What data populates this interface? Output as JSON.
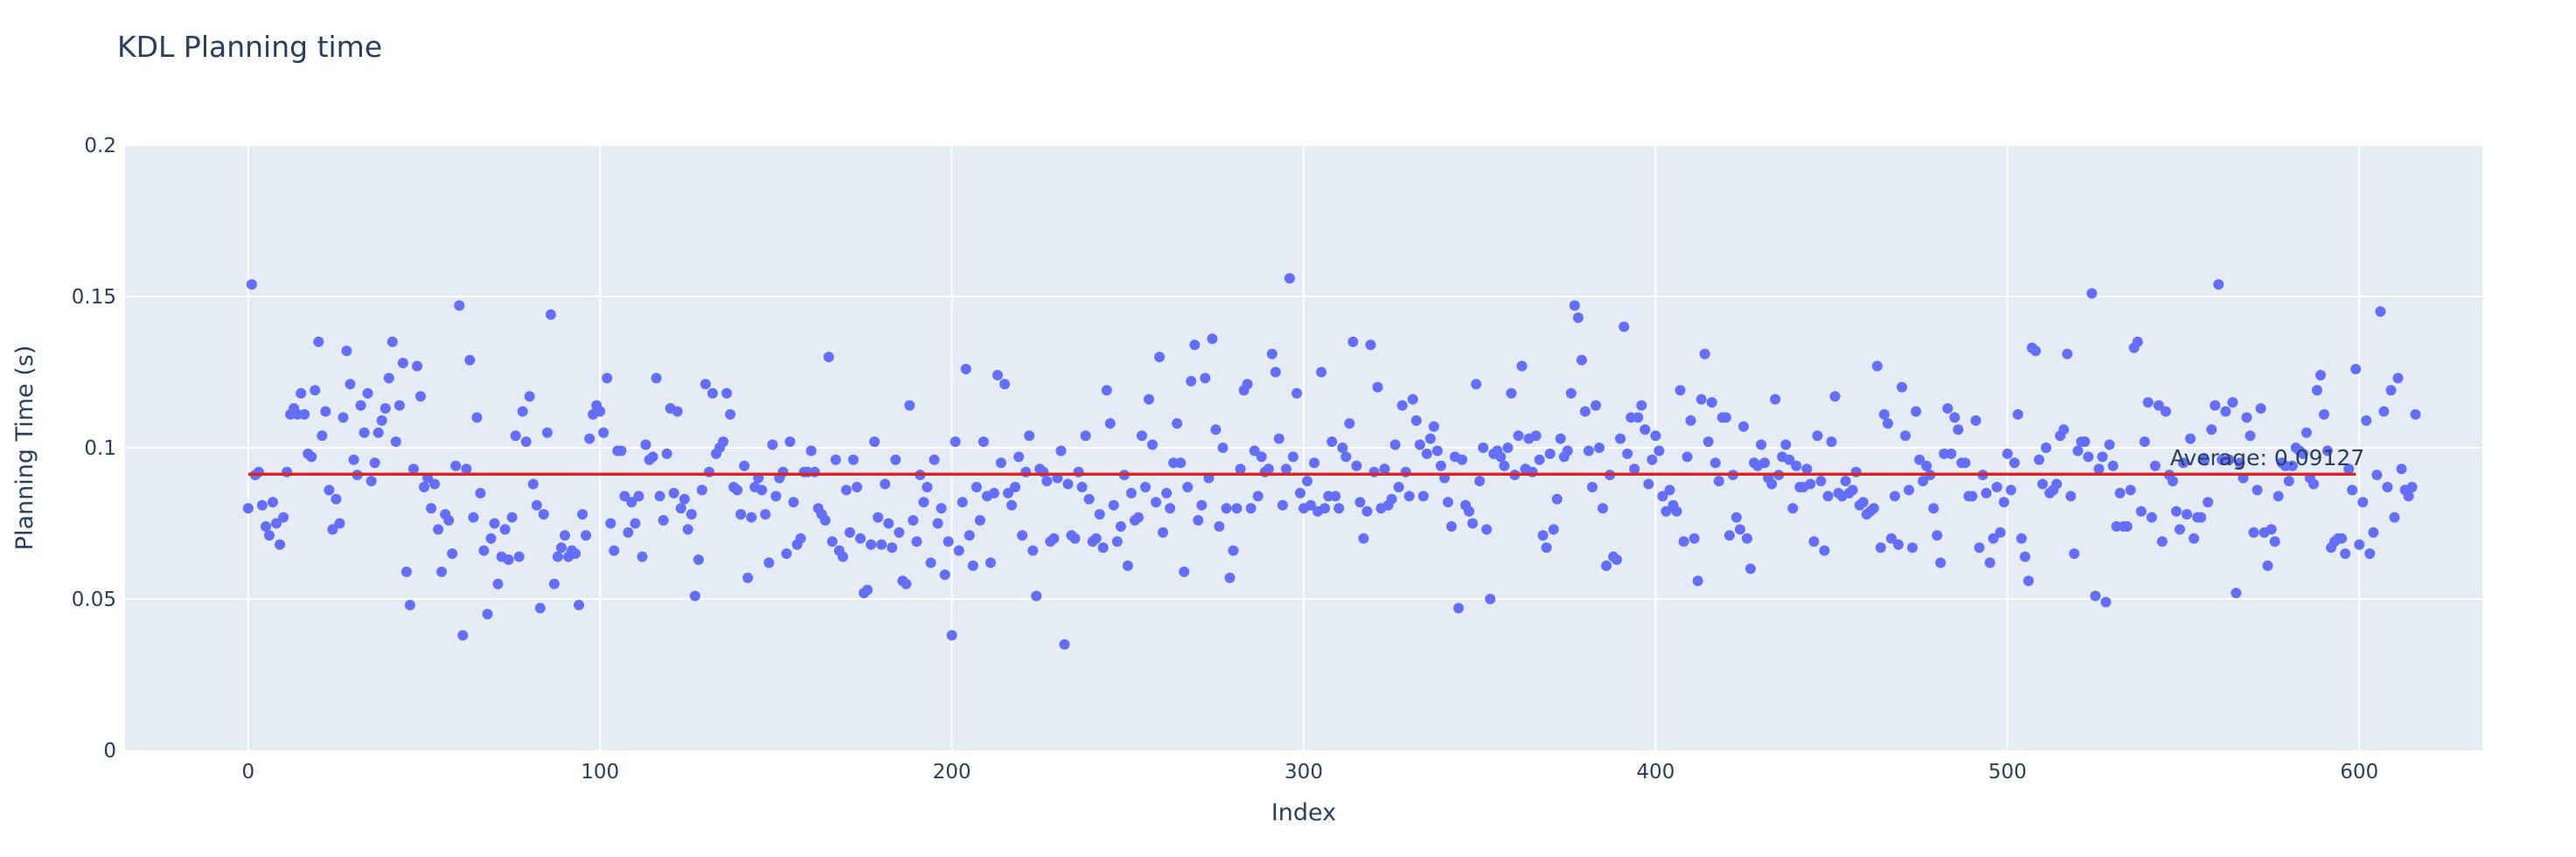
{
  "chart_data": {
    "type": "scatter",
    "title": "KDL Planning time",
    "xlabel": "Index",
    "ylabel": "Planning Time (s)",
    "xlim": [
      -35,
      635
    ],
    "ylim": [
      0,
      0.2
    ],
    "x_ticks": [
      0,
      100,
      200,
      300,
      400,
      500,
      600
    ],
    "y_ticks": [
      0,
      0.05,
      0.1,
      0.15,
      0.2
    ],
    "x_tick_labels": [
      "0",
      "100",
      "200",
      "300",
      "400",
      "500",
      "600"
    ],
    "y_tick_labels": [
      "0",
      "0.05",
      "0.1",
      "0.15",
      "0.2"
    ],
    "grid": true,
    "background": "#e5ecf6",
    "series": [
      {
        "type": "scatter",
        "color": "#636efa",
        "x_start": 0,
        "y": [
          0.08,
          0.154,
          0.091,
          0.092,
          0.081,
          0.074,
          0.071,
          0.082,
          0.075,
          0.068,
          0.077,
          0.092,
          0.111,
          0.113,
          0.111,
          0.118,
          0.111,
          0.098,
          0.097,
          0.119,
          0.135,
          0.104,
          0.112,
          0.086,
          0.073,
          0.083,
          0.075,
          0.11,
          0.132,
          0.121,
          0.096,
          0.091,
          0.114,
          0.105,
          0.118,
          0.089,
          0.095,
          0.105,
          0.109,
          0.113,
          0.123,
          0.135,
          0.102,
          0.114,
          0.128,
          0.059,
          0.048,
          0.093,
          0.127,
          0.117,
          0.087,
          0.09,
          0.08,
          0.088,
          0.073,
          0.059,
          0.078,
          0.076,
          0.065,
          0.094,
          0.147,
          0.038,
          0.093,
          0.129,
          0.077,
          0.11,
          0.085,
          0.066,
          0.045,
          0.07,
          0.075,
          0.055,
          0.064,
          0.073,
          0.063,
          0.077,
          0.104,
          0.064,
          0.112,
          0.102,
          0.117,
          0.088,
          0.081,
          0.047,
          0.078,
          0.105,
          0.144,
          0.055,
          0.064,
          0.067,
          0.071,
          0.064,
          0.066,
          0.065,
          0.048,
          0.078,
          0.071,
          0.103,
          0.111,
          0.114,
          0.112,
          0.105,
          0.123,
          0.075,
          0.066,
          0.099,
          0.099,
          0.084,
          0.072,
          0.082,
          0.075,
          0.084,
          0.064,
          0.101,
          0.096,
          0.097,
          0.123,
          0.084,
          0.076,
          0.098,
          0.113,
          0.085,
          0.112,
          0.08,
          0.083,
          0.073,
          0.078,
          0.051,
          0.063,
          0.086,
          0.121,
          0.092,
          0.118,
          0.098,
          0.1,
          0.102,
          0.118,
          0.111,
          0.087,
          0.086,
          0.078,
          0.094,
          0.057,
          0.077,
          0.087,
          0.09,
          0.086,
          0.078,
          0.062,
          0.101,
          0.084,
          0.09,
          0.092,
          0.065,
          0.102,
          0.082,
          0.068,
          0.07,
          0.092,
          0.092,
          0.099,
          0.092,
          0.08,
          0.078,
          0.076,
          0.13,
          0.069,
          0.096,
          0.066,
          0.064,
          0.086,
          0.072,
          0.096,
          0.087,
          0.07,
          0.052,
          0.053,
          0.068,
          0.102,
          0.077,
          0.068,
          0.088,
          0.075,
          0.067,
          0.096,
          0.072,
          0.056,
          0.055,
          0.114,
          0.076,
          0.069,
          0.091,
          0.082,
          0.087,
          0.062,
          0.096,
          0.075,
          0.08,
          0.058,
          0.069,
          0.038,
          0.102,
          0.066,
          0.082,
          0.126,
          0.071,
          0.061,
          0.087,
          0.076,
          0.102,
          0.084,
          0.062,
          0.085,
          0.124,
          0.095,
          0.121,
          0.085,
          0.081,
          0.087,
          0.097,
          0.071,
          0.092,
          0.104,
          0.066,
          0.051,
          0.093,
          0.092,
          0.089,
          0.069,
          0.07,
          0.09,
          0.099,
          0.035,
          0.088,
          0.071,
          0.07,
          0.092,
          0.087,
          0.104,
          0.083,
          0.069,
          0.07,
          0.078,
          0.067,
          0.119,
          0.108,
          0.081,
          0.069,
          0.074,
          0.091,
          0.061,
          0.085,
          0.076,
          0.077,
          0.104,
          0.087,
          0.116,
          0.101,
          0.082,
          0.13,
          0.072,
          0.085,
          0.08,
          0.095,
          0.108,
          0.095,
          0.059,
          0.087,
          0.122,
          0.134,
          0.076,
          0.081,
          0.123,
          0.09,
          0.136,
          0.106,
          0.074,
          0.1,
          0.08,
          0.057,
          0.066,
          0.08,
          0.093,
          0.119,
          0.121,
          0.08,
          0.099,
          0.084,
          0.097,
          0.092,
          0.093,
          0.131,
          0.125,
          0.103,
          0.081,
          0.093,
          0.156,
          0.097,
          0.118,
          0.085,
          0.08,
          0.089,
          0.081,
          0.095,
          0.079,
          0.125,
          0.08,
          0.084,
          0.102,
          0.084,
          0.08,
          0.1,
          0.097,
          0.108,
          0.135,
          0.094,
          0.082,
          0.07,
          0.079,
          0.134,
          0.092,
          0.12,
          0.08,
          0.093,
          0.081,
          0.083,
          0.101,
          0.087,
          0.114,
          0.092,
          0.084,
          0.116,
          0.109,
          0.101,
          0.084,
          0.098,
          0.103,
          0.107,
          0.099,
          0.094,
          0.09,
          0.082,
          0.074,
          0.097,
          0.047,
          0.096,
          0.081,
          0.079,
          0.075,
          0.121,
          0.089,
          0.1,
          0.073,
          0.05,
          0.098,
          0.099,
          0.097,
          0.094,
          0.1,
          0.118,
          0.091,
          0.104,
          0.127,
          0.093,
          0.103,
          0.092,
          0.104,
          0.096,
          0.071,
          0.067,
          0.098,
          0.073,
          0.083,
          0.103,
          0.097,
          0.099,
          0.118,
          0.147,
          0.143,
          0.129,
          0.112,
          0.099,
          0.087,
          0.114,
          0.1,
          0.08,
          0.061,
          0.091,
          0.064,
          0.063,
          0.103,
          0.14,
          0.098,
          0.11,
          0.093,
          0.11,
          0.114,
          0.106,
          0.088,
          0.096,
          0.104,
          0.099,
          0.084,
          0.079,
          0.086,
          0.081,
          0.079,
          0.119,
          0.069,
          0.097,
          0.109,
          0.07,
          0.056,
          0.116,
          0.131,
          0.102,
          0.115,
          0.095,
          0.089,
          0.11,
          0.11,
          0.071,
          0.091,
          0.077,
          0.073,
          0.107,
          0.07,
          0.06,
          0.095,
          0.094,
          0.101,
          0.095,
          0.09,
          0.088,
          0.116,
          0.091,
          0.097,
          0.101,
          0.096,
          0.08,
          0.094,
          0.087,
          0.087,
          0.093,
          0.088,
          0.069,
          0.104,
          0.089,
          0.066,
          0.084,
          0.102,
          0.117,
          0.085,
          0.084,
          0.089,
          0.085,
          0.086,
          0.092,
          0.081,
          0.082,
          0.078,
          0.079,
          0.08,
          0.127,
          0.067,
          0.111,
          0.108,
          0.07,
          0.084,
          0.068,
          0.12,
          0.104,
          0.086,
          0.067,
          0.112,
          0.096,
          0.089,
          0.094,
          0.091,
          0.08,
          0.071,
          0.062,
          0.098,
          0.113,
          0.098,
          0.11,
          0.106,
          0.095,
          0.095,
          0.084,
          0.084,
          0.109,
          0.067,
          0.091,
          0.085,
          0.062,
          0.07,
          0.087,
          0.072,
          0.082,
          0.098,
          0.086,
          0.095,
          0.111,
          0.07,
          0.064,
          0.056,
          0.133,
          0.132,
          0.096,
          0.088,
          0.1,
          0.085,
          0.086,
          0.088,
          0.104,
          0.106,
          0.131,
          0.084,
          0.065,
          0.099,
          0.102,
          0.102,
          0.097,
          0.151,
          0.051,
          0.093,
          0.097,
          0.049,
          0.101,
          0.094,
          0.074,
          0.085,
          0.074,
          0.074,
          0.086,
          0.133,
          0.135,
          0.079,
          0.102,
          0.115,
          0.077,
          0.094,
          0.114,
          0.069,
          0.112,
          0.091,
          0.089,
          0.079,
          0.073,
          0.095,
          0.078,
          0.103,
          0.07,
          0.077,
          0.077,
          0.096,
          0.082,
          0.106,
          0.114,
          0.154,
          0.096,
          0.112,
          0.096,
          0.115,
          0.052,
          0.095,
          0.09,
          0.11,
          0.104,
          0.072,
          0.086,
          0.113,
          0.072,
          0.061,
          0.073,
          0.069,
          0.084,
          0.095,
          0.094,
          0.089,
          0.094,
          0.1,
          0.099,
          0.098,
          0.105,
          0.09,
          0.088,
          0.119,
          0.124,
          0.111,
          0.099,
          0.067,
          0.069,
          0.07,
          0.07,
          0.065,
          0.093,
          0.086,
          0.126,
          0.068,
          0.082,
          0.109,
          0.065,
          0.072,
          0.091,
          0.145,
          0.112,
          0.087,
          0.119,
          0.077,
          0.123,
          0.093,
          0.086,
          0.084,
          0.087,
          0.111
        ]
      },
      {
        "type": "line",
        "color": "#d62728",
        "x": [
          0,
          599
        ],
        "y": [
          0.09127,
          0.09127
        ]
      }
    ],
    "annotations": [
      {
        "text": "Average: 0.09127",
        "x": 599,
        "y": 0.09127
      }
    ]
  }
}
